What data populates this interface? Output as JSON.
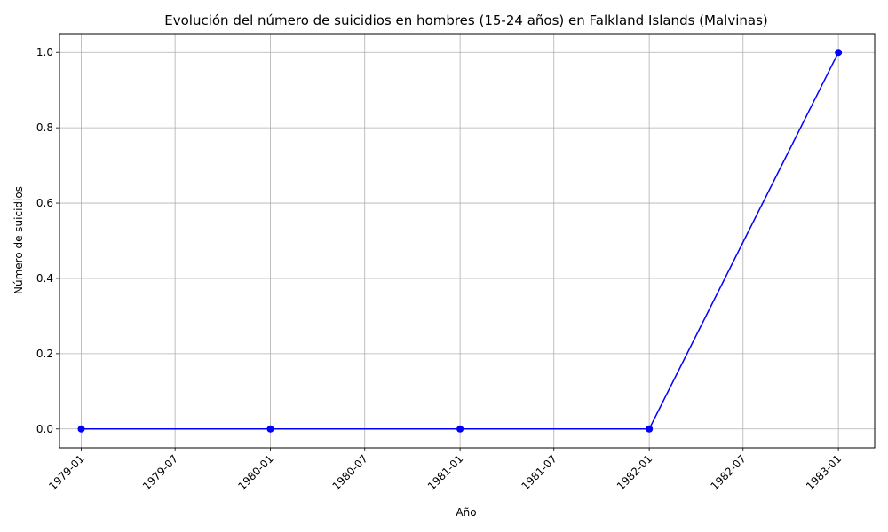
{
  "chart_data": {
    "type": "line",
    "title": "Evolución del número de suicidios en hombres (15-24 años) en Falkland Islands (Malvinas)",
    "xlabel": "Año",
    "ylabel": "Número de suicidios",
    "x_scale": "date",
    "xlim": [
      "1978-11-20",
      "1983-03-12"
    ],
    "ylim": [
      -0.05,
      1.05
    ],
    "x_ticks": [
      "1979-01",
      "1979-07",
      "1980-01",
      "1980-07",
      "1981-01",
      "1981-07",
      "1982-01",
      "1982-07",
      "1983-01"
    ],
    "y_ticks": [
      0.0,
      0.2,
      0.4,
      0.6,
      0.8,
      1.0
    ],
    "grid": true,
    "series": [
      {
        "color": "#0000ff",
        "marker": "circle",
        "x": [
          "1979-01-01",
          "1980-01-01",
          "1981-01-01",
          "1982-01-01",
          "1983-01-01"
        ],
        "y": [
          0,
          0,
          0,
          0,
          1
        ]
      }
    ]
  }
}
